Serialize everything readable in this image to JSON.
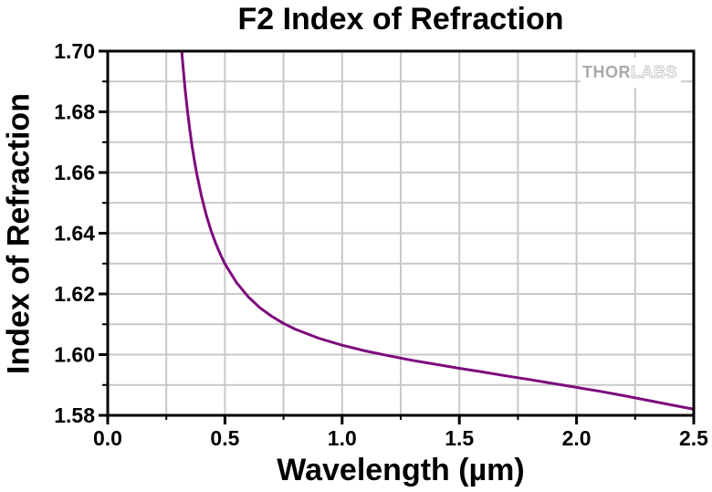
{
  "figure": {
    "title": "F2 Index of Refraction"
  },
  "watermark": {
    "part1": "THOR",
    "part2": "LABS"
  },
  "style": {
    "background": "#ffffff",
    "axis_color": "#000000",
    "grid_color": "#c9c9c9",
    "line_color": "#7d0b7d",
    "watermark_solid": "#a9a9a9",
    "watermark_outline": "#c6c6c6"
  },
  "chart_data": {
    "type": "line",
    "title": "F2 Index of Refraction",
    "xlabel": "Wavelength (µm)",
    "ylabel": "Index of Refraction",
    "xlim": [
      0.0,
      2.5
    ],
    "ylim": [
      1.58,
      1.7
    ],
    "x_tick_values": [
      0.0,
      0.5,
      1.0,
      1.5,
      2.0,
      2.5
    ],
    "x_tick_labels": [
      "0.0",
      "0.5",
      "1.0",
      "1.5",
      "2.0",
      "2.5"
    ],
    "y_tick_values": [
      1.58,
      1.6,
      1.62,
      1.64,
      1.66,
      1.68,
      1.7
    ],
    "y_tick_labels": [
      "1.58",
      "1.60",
      "1.62",
      "1.64",
      "1.66",
      "1.68",
      "1.70"
    ],
    "x_minor_step": 0.25,
    "y_minor_step": 0.01,
    "grid": true,
    "legend_position": "none",
    "series": [
      {
        "name": "F2 index of refraction",
        "color": "#7d0b7d",
        "x": [
          0.31,
          0.315,
          0.32,
          0.33,
          0.34,
          0.35,
          0.36,
          0.37,
          0.38,
          0.4,
          0.42,
          0.44,
          0.46,
          0.48,
          0.5,
          0.55,
          0.6,
          0.65,
          0.7,
          0.75,
          0.8,
          0.9,
          1.0,
          1.1,
          1.2,
          1.3,
          1.4,
          1.5,
          1.6,
          1.7,
          1.8,
          1.9,
          2.0,
          2.1,
          2.2,
          2.3,
          2.4,
          2.5
        ],
        "y": [
          1.7059,
          1.7007,
          1.696,
          1.6877,
          1.6805,
          1.6742,
          1.6687,
          1.6639,
          1.6595,
          1.6522,
          1.6461,
          1.641,
          1.6368,
          1.6331,
          1.6299,
          1.6237,
          1.619,
          1.6154,
          1.6126,
          1.6103,
          1.6084,
          1.6054,
          1.6031,
          1.6012,
          1.5996,
          1.5981,
          1.5968,
          1.5955,
          1.5943,
          1.593,
          1.5918,
          1.5905,
          1.5892,
          1.5879,
          1.5865,
          1.585,
          1.5835,
          1.582
        ]
      }
    ]
  }
}
